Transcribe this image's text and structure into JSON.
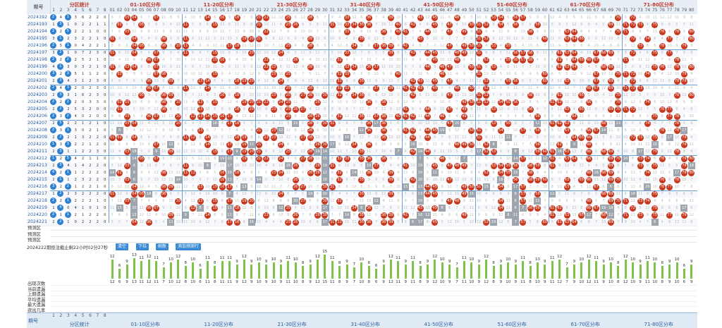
{
  "header": {
    "qihao_label": "期号",
    "sections": [
      "分区统计",
      "01-10区分布",
      "11-20区分布",
      "21-30区分布",
      "31-40区分布",
      "41-50区分布",
      "51-60区分布",
      "61-70区分布",
      "71-80区分布"
    ]
  },
  "periods": [
    "2024192",
    "2024193",
    "2024194",
    "2024195",
    "2024196",
    "2024197",
    "2024198",
    "2024199",
    "2024200",
    "2024201",
    "2024202",
    "2024203",
    "2024204",
    "2024205",
    "2024206",
    "2024207",
    "2024208",
    "2024209",
    "2024210",
    "2024211",
    "2024212",
    "2024213",
    "2024214",
    "2024215",
    "2024216",
    "2024217",
    "2024218",
    "2024219",
    "2024220",
    "2024221"
  ],
  "zone_counts": [
    [
      2,
      4,
      1,
      3,
      6,
      2,
      2,
      0
    ],
    [
      1,
      3,
      1,
      0,
      2,
      2,
      1,
      1
    ],
    [
      2,
      2,
      5,
      2,
      2,
      1,
      0,
      0
    ],
    [
      3,
      1,
      2,
      3,
      2,
      2,
      1,
      0
    ],
    [
      2,
      5,
      1,
      0,
      4,
      2,
      2,
      1
    ],
    [
      3,
      2,
      1,
      0,
      7,
      2,
      3,
      0
    ],
    [
      2,
      2,
      2,
      2,
      5,
      2,
      1,
      0
    ],
    [
      4,
      1,
      3,
      0,
      3,
      2,
      1,
      0
    ],
    [
      3,
      2,
      3,
      5,
      1,
      1,
      2,
      0
    ],
    [
      2,
      3,
      4,
      3,
      1,
      2,
      3,
      0
    ],
    [
      2,
      4,
      3,
      2,
      0,
      2,
      3,
      0
    ],
    [
      2,
      3,
      3,
      1,
      6,
      2,
      3,
      0
    ],
    [
      2,
      2,
      2,
      2,
      0,
      3,
      3,
      0
    ],
    [
      2,
      2,
      2,
      5,
      3,
      2,
      0,
      0
    ],
    [
      2,
      3,
      2,
      4,
      0,
      2,
      0,
      0
    ],
    [
      2,
      5,
      2,
      2,
      1,
      2,
      1,
      0
    ],
    [
      2,
      3,
      1,
      3,
      0,
      2,
      1,
      0
    ],
    [
      2,
      2,
      2,
      1,
      3,
      2,
      2,
      0
    ],
    [
      1,
      3,
      3,
      2,
      2,
      1,
      2,
      0
    ],
    [
      2,
      3,
      1,
      1,
      2,
      2,
      3,
      0
    ],
    [
      1,
      2,
      5,
      4,
      2,
      1,
      1,
      0
    ],
    [
      2,
      3,
      4,
      1,
      4,
      2,
      2,
      0
    ],
    [
      4,
      2,
      1,
      1,
      2,
      2,
      2,
      0
    ],
    [
      2,
      1,
      1,
      2,
      3,
      2,
      2,
      0
    ],
    [
      3,
      2,
      2,
      1,
      2,
      2,
      1,
      0
    ],
    [
      1,
      2,
      2,
      3,
      2,
      2,
      2,
      0
    ],
    [
      2,
      2,
      1,
      2,
      2,
      2,
      1,
      0
    ],
    [
      1,
      4,
      0,
      4,
      1,
      0,
      1,
      0
    ],
    [
      2,
      1,
      1,
      2,
      1,
      2,
      2,
      0
    ],
    [
      2,
      2,
      1,
      0,
      2,
      2,
      2,
      0
    ]
  ],
  "predict_rows": [
    "预测区",
    "预测区",
    "预测区"
  ],
  "countdown_text": "2024222期投注截止剩22小时02分27秒",
  "buttons": {
    "clear": "清空",
    "down": "下拉",
    "refresh": "刷新",
    "add_predict": "添加预测行"
  },
  "stats": {
    "labels": [
      "出现次数",
      "当前遗漏",
      "上期遗漏",
      "平均遗漏",
      "最大遗漏",
      "欲出几率"
    ],
    "counts": [
      12,
      6,
      9,
      13,
      11,
      12,
      11,
      7,
      10,
      12,
      8,
      10,
      6,
      11,
      8,
      11,
      11,
      9,
      12,
      9,
      10,
      9,
      10,
      9,
      11,
      10,
      8,
      9,
      12,
      15,
      11,
      8,
      9,
      7,
      10,
      8,
      6,
      9,
      12,
      11,
      9,
      11,
      8,
      9,
      12,
      10,
      9,
      7,
      11,
      10,
      9,
      12,
      8,
      9,
      10,
      9,
      11,
      8,
      10,
      9,
      11,
      12,
      7,
      9,
      10,
      12,
      11,
      9,
      10,
      8,
      12,
      10,
      9,
      11,
      10,
      8,
      9,
      10,
      6,
      9
    ]
  },
  "footer": {
    "label": "期号",
    "sections": [
      "分区统计",
      "01-10区分布",
      "11-20区分布",
      "21-30区分布",
      "31-40区分布",
      "41-50区分布",
      "51-60区分布",
      "61-70区分布",
      "71-80区分布"
    ]
  }
}
